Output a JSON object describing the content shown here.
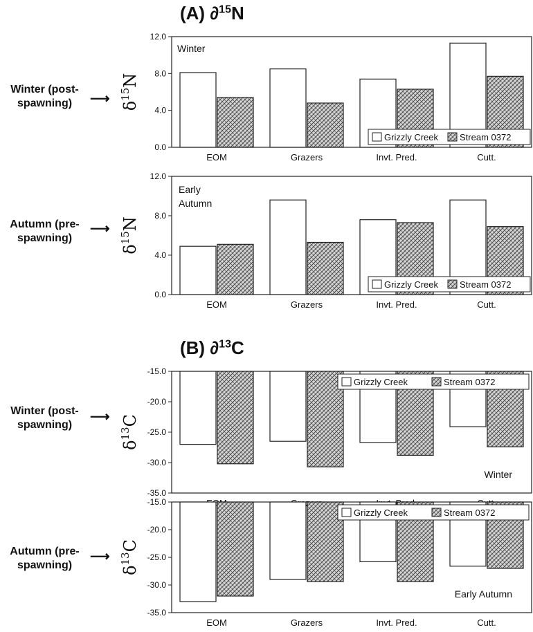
{
  "sections": {
    "a_title_prefix": "(A) ∂",
    "a_title_sup": "15",
    "a_title_suffix": "N",
    "b_title_prefix": "(B) ∂",
    "b_title_sup": "13",
    "b_title_suffix": "C"
  },
  "row_labels": [
    "Winter (post-\nspawning)",
    "Autumn (pre-\nspawning)",
    "Winter (post-\nspawning)",
    "Autumn (pre-\nspawning)"
  ],
  "legend": [
    "Grizzly Creek",
    "Stream 0372"
  ],
  "colors": {
    "grizzly": "#ffffff",
    "stream": "#bdbdbd",
    "stroke": "#222222"
  },
  "chart_data": [
    {
      "type": "bar",
      "categories": [
        "EOM",
        "Grazers",
        "Invt. Pred.",
        "Cutt."
      ],
      "series": [
        {
          "name": "Grizzly Creek",
          "values": [
            8.1,
            8.5,
            7.4,
            11.3
          ]
        },
        {
          "name": "Stream 0372",
          "values": [
            5.4,
            4.8,
            6.3,
            7.7
          ]
        }
      ],
      "ylabel": "δ¹⁵N",
      "ylabel_base": "δ",
      "ylabel_sup": "15",
      "ylabel_tail": "N",
      "yticks": [
        "0.0",
        "4.0",
        "8.0",
        "12.0"
      ],
      "ylim": [
        0,
        12
      ],
      "annotation": "Winter",
      "legend": "bottom-right"
    },
    {
      "type": "bar",
      "categories": [
        "EOM",
        "Grazers",
        "Invt. Pred.",
        "Cutt."
      ],
      "series": [
        {
          "name": "Grizzly Creek",
          "values": [
            4.9,
            9.6,
            7.6,
            9.6
          ]
        },
        {
          "name": "Stream 0372",
          "values": [
            5.1,
            5.3,
            7.3,
            6.9
          ]
        }
      ],
      "ylabel": "δ¹⁵N",
      "ylabel_base": "δ",
      "ylabel_sup": "15",
      "ylabel_tail": "N",
      "yticks": [
        "0.0",
        "4.0",
        "8.0",
        "12.0"
      ],
      "ylim": [
        0,
        12
      ],
      "annotation": "Early\nAutumn",
      "legend": "bottom-right"
    },
    {
      "type": "bar",
      "categories": [
        "EOM",
        "Grazers",
        "Invt. Pred.",
        "Cutt."
      ],
      "series": [
        {
          "name": "Grizzly Creek",
          "values": [
            -27.0,
            -26.5,
            -26.7,
            -24.1
          ]
        },
        {
          "name": "Stream 0372",
          "values": [
            -30.2,
            -30.7,
            -28.8,
            -27.4
          ]
        }
      ],
      "ylabel": "δ¹³C",
      "ylabel_base": "δ",
      "ylabel_sup": "13",
      "ylabel_tail": "C",
      "yticks": [
        "-35.0",
        "-30.0",
        "-25.0",
        "-20.0",
        "-15.0"
      ],
      "ylim": [
        -35,
        -15
      ],
      "annotation": "Winter",
      "legend": "top-right"
    },
    {
      "type": "bar",
      "categories": [
        "EOM",
        "Grazers",
        "Invt. Pred.",
        "Cutt."
      ],
      "series": [
        {
          "name": "Grizzly Creek",
          "values": [
            -33.0,
            -29.0,
            -25.8,
            -26.6
          ]
        },
        {
          "name": "Stream 0372",
          "values": [
            -32.0,
            -29.4,
            -29.4,
            -27.0
          ]
        }
      ],
      "ylabel": "δ¹³C",
      "ylabel_base": "δ",
      "ylabel_sup": "13",
      "ylabel_tail": "C",
      "yticks": [
        "-35.0",
        "-30.0",
        "-25.0",
        "-20.0",
        "-15.0"
      ],
      "ylim": [
        -35,
        -15
      ],
      "annotation": "Early Autumn",
      "legend": "top-right"
    }
  ]
}
